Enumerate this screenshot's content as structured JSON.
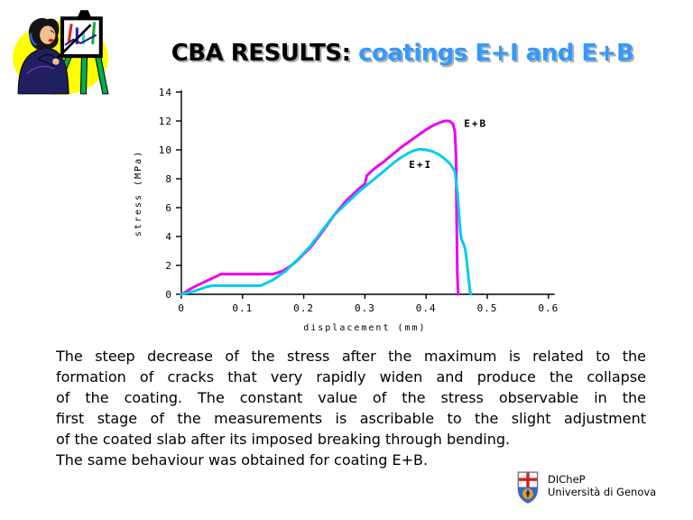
{
  "slide": {
    "title": {
      "prefix": "CBA RESULTS: ",
      "highlight": "coatings E+I and E+B",
      "highlight_color": "#3399ff"
    },
    "body": {
      "lines": [
        "The steep decrease of the stress after the maximum is related to the",
        "formation of cracks that very rapidly widen and produce the collapse",
        "of the coating. The constant value of the stress observable in the",
        "first stage of the measurements is ascribable to the slight adjustment",
        "of the coated slab after its imposed breaking through bending.",
        "The same behaviour was obtained for coating E+B."
      ]
    },
    "footer": {
      "department": "DICheP",
      "university": "Università di Genova"
    },
    "clipart_description": "presenter-at-easel-clipart"
  },
  "chart_data": {
    "type": "line",
    "title": "",
    "xlabel": "displacement (mm)",
    "ylabel": "stress (MPa)",
    "xlim": [
      0,
      0.6
    ],
    "ylim": [
      0,
      14
    ],
    "x_ticks": [
      "0",
      "0.1",
      "0.2",
      "0.3",
      "0.4",
      "0.5",
      "0.6"
    ],
    "y_ticks": [
      "0",
      "2",
      "4",
      "6",
      "8",
      "10",
      "12",
      "14"
    ],
    "grid": false,
    "legend_position": "inline-labels",
    "series": [
      {
        "name": "E+B",
        "color": "#ee00ee",
        "label_pos": [
          0.462,
          11.6
        ],
        "points": [
          [
            0,
            0
          ],
          [
            0.005,
            0.1
          ],
          [
            0.012,
            0.3
          ],
          [
            0.02,
            0.5
          ],
          [
            0.03,
            0.7
          ],
          [
            0.04,
            0.9
          ],
          [
            0.05,
            1.1
          ],
          [
            0.06,
            1.3
          ],
          [
            0.065,
            1.4
          ],
          [
            0.15,
            1.4
          ],
          [
            0.165,
            1.6
          ],
          [
            0.18,
            2.0
          ],
          [
            0.19,
            2.35
          ],
          [
            0.2,
            2.8
          ],
          [
            0.21,
            3.2
          ],
          [
            0.22,
            3.75
          ],
          [
            0.23,
            4.3
          ],
          [
            0.24,
            4.9
          ],
          [
            0.25,
            5.5
          ],
          [
            0.26,
            6.0
          ],
          [
            0.27,
            6.5
          ],
          [
            0.28,
            6.9
          ],
          [
            0.29,
            7.3
          ],
          [
            0.3,
            7.65
          ],
          [
            0.303,
            8.2
          ],
          [
            0.31,
            8.5
          ],
          [
            0.32,
            8.85
          ],
          [
            0.33,
            9.15
          ],
          [
            0.34,
            9.5
          ],
          [
            0.35,
            9.85
          ],
          [
            0.36,
            10.2
          ],
          [
            0.37,
            10.5
          ],
          [
            0.38,
            10.8
          ],
          [
            0.39,
            11.1
          ],
          [
            0.4,
            11.4
          ],
          [
            0.41,
            11.65
          ],
          [
            0.42,
            11.85
          ],
          [
            0.43,
            12.0
          ],
          [
            0.438,
            12.0
          ],
          [
            0.444,
            11.8
          ],
          [
            0.447,
            11.3
          ],
          [
            0.449,
            9.5
          ],
          [
            0.45,
            5.0
          ],
          [
            0.451,
            1.5
          ],
          [
            0.452,
            0.3
          ],
          [
            0.4525,
            0
          ]
        ]
      },
      {
        "name": "E+I",
        "color": "#00ccee",
        "label_pos": [
          0.372,
          8.75
        ],
        "points": [
          [
            0,
            0
          ],
          [
            0.01,
            0.1
          ],
          [
            0.02,
            0.2
          ],
          [
            0.03,
            0.35
          ],
          [
            0.04,
            0.5
          ],
          [
            0.05,
            0.6
          ],
          [
            0.13,
            0.6
          ],
          [
            0.14,
            0.8
          ],
          [
            0.15,
            1.0
          ],
          [
            0.16,
            1.3
          ],
          [
            0.17,
            1.6
          ],
          [
            0.18,
            2.0
          ],
          [
            0.19,
            2.4
          ],
          [
            0.2,
            2.85
          ],
          [
            0.21,
            3.3
          ],
          [
            0.22,
            3.85
          ],
          [
            0.23,
            4.4
          ],
          [
            0.24,
            4.95
          ],
          [
            0.25,
            5.5
          ],
          [
            0.26,
            5.9
          ],
          [
            0.27,
            6.3
          ],
          [
            0.28,
            6.7
          ],
          [
            0.29,
            7.1
          ],
          [
            0.3,
            7.45
          ],
          [
            0.31,
            7.8
          ],
          [
            0.32,
            8.15
          ],
          [
            0.33,
            8.5
          ],
          [
            0.34,
            8.85
          ],
          [
            0.35,
            9.2
          ],
          [
            0.36,
            9.5
          ],
          [
            0.37,
            9.75
          ],
          [
            0.38,
            9.95
          ],
          [
            0.39,
            10.05
          ],
          [
            0.4,
            10.0
          ],
          [
            0.41,
            9.9
          ],
          [
            0.42,
            9.7
          ],
          [
            0.43,
            9.4
          ],
          [
            0.44,
            9.0
          ],
          [
            0.447,
            8.5
          ],
          [
            0.451,
            7.2
          ],
          [
            0.454,
            5.5
          ],
          [
            0.456,
            4.3
          ],
          [
            0.458,
            3.8
          ],
          [
            0.462,
            3.4
          ],
          [
            0.464,
            3.1
          ],
          [
            0.466,
            2.5
          ],
          [
            0.468,
            1.7
          ],
          [
            0.47,
            0.9
          ],
          [
            0.472,
            0.2
          ],
          [
            0.473,
            0
          ]
        ]
      }
    ]
  }
}
